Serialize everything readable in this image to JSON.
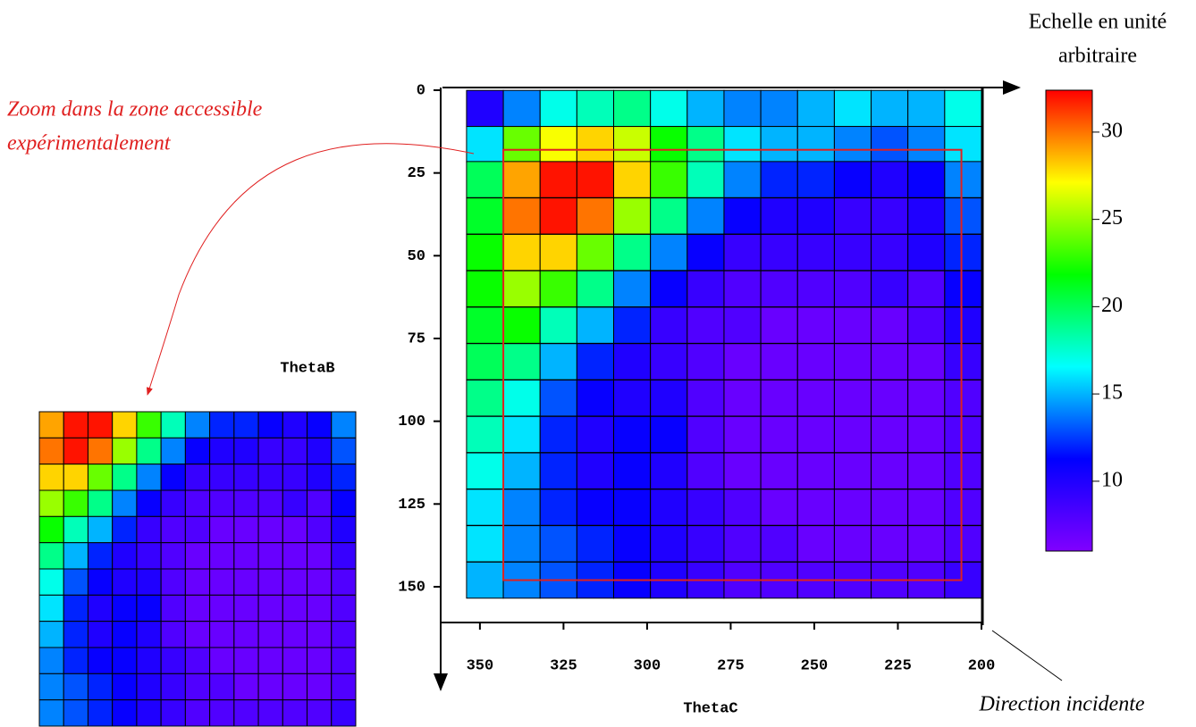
{
  "chart_data": {
    "type": "heatmap",
    "xlabel": "ThetaC",
    "ylabel": "ThetaB",
    "xlim": [
      361.2,
      200
    ],
    "ylim": [
      0,
      160.8
    ],
    "xticks": [
      350,
      325,
      300,
      275,
      250,
      225,
      200
    ],
    "yticks": [
      0,
      25,
      50,
      75,
      100,
      125,
      150
    ],
    "x": [
      348.5,
      337.5,
      326.5,
      315.5,
      304.5,
      293.5,
      282.5,
      271.5,
      260.5,
      249.5,
      238.5,
      227.5,
      216.5,
      205.5
    ],
    "y": [
      5.5,
      16.4,
      27,
      38,
      49,
      60,
      71,
      82,
      93,
      104,
      115,
      126,
      137,
      148
    ],
    "values": [
      [
        10,
        14,
        17,
        18,
        19,
        17,
        15,
        14,
        14,
        15,
        16,
        15,
        15,
        17
      ],
      [
        16,
        24,
        27,
        28,
        26,
        22,
        19,
        16,
        15,
        15,
        14,
        13,
        14,
        16
      ],
      [
        20,
        29,
        32,
        32,
        28,
        23,
        18,
        14,
        12,
        12,
        11,
        10,
        11,
        14
      ],
      [
        21,
        30,
        32,
        30,
        25,
        19,
        14,
        11,
        10,
        10,
        9,
        9,
        10,
        13
      ],
      [
        22,
        28,
        28,
        24,
        19,
        14,
        11,
        9,
        9,
        9,
        9,
        9,
        10,
        12
      ],
      [
        22,
        25,
        23,
        19,
        14,
        11,
        9,
        8,
        8,
        8,
        8,
        9,
        8,
        11
      ],
      [
        21,
        22,
        18,
        15,
        12,
        9,
        8,
        8,
        7,
        7,
        7,
        7,
        8,
        10
      ],
      [
        20,
        19,
        15,
        12,
        10,
        9,
        8,
        7,
        7,
        7,
        7,
        7,
        7,
        9
      ],
      [
        19,
        17,
        13,
        11,
        10,
        10,
        8,
        7,
        7,
        7,
        7,
        7,
        7,
        8
      ],
      [
        18,
        16,
        12,
        10,
        11,
        11,
        8,
        7,
        7,
        7,
        7,
        7,
        7,
        8
      ],
      [
        17,
        15,
        12,
        10,
        11,
        10,
        8,
        7,
        7,
        7,
        7,
        7,
        7,
        8
      ],
      [
        16,
        14,
        12,
        11,
        11,
        10,
        9,
        8,
        7,
        7,
        7,
        7,
        7,
        8
      ],
      [
        16,
        14,
        13,
        12,
        11,
        10,
        9,
        8,
        8,
        7,
        7,
        7,
        7,
        8
      ],
      [
        15,
        14,
        13,
        12,
        11,
        10,
        9,
        8,
        8,
        8,
        8,
        8,
        8,
        9
      ]
    ],
    "colormap": [
      "#8000ff",
      "#0000ff",
      "#00ffff",
      "#00ff00",
      "#ffff00",
      "#ff0000"
    ],
    "colorlim": [
      6,
      32.4
    ],
    "colorbar_ticks": [
      30,
      25,
      20,
      15,
      10
    ],
    "colorbar_label": [
      "Echelle en unité",
      "arbitraire"
    ],
    "zoom_region": {
      "x": [
        343,
        206
      ],
      "y": [
        18,
        148
      ],
      "color": "#e02020"
    },
    "zoom_annotation": [
      "Zoom dans la zone accessible",
      "expérimentalement"
    ],
    "direction_annotation": "Direction incidente"
  }
}
